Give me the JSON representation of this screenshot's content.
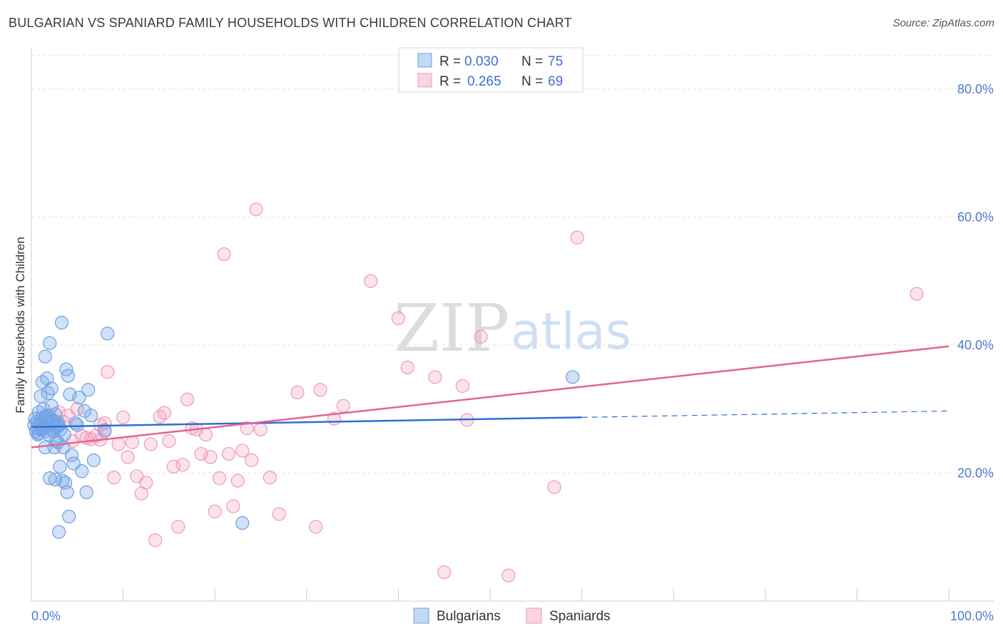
{
  "header": {
    "title": "BULGARIAN VS SPANIARD FAMILY HOUSEHOLDS WITH CHILDREN CORRELATION CHART",
    "source": "Source: ZipAtlas.com"
  },
  "watermark": {
    "zip": "ZIP",
    "atlas": "atlas"
  },
  "colors": {
    "bulgarian_fill": "rgba(120,170,235,0.35)",
    "bulgarian_stroke": "#6f9fe0",
    "bulgarian_line": "#2e6fd0",
    "spaniard_fill": "rgba(245,160,190,0.30)",
    "spaniard_stroke": "#ec9ab6",
    "spaniard_line": "#e0658f",
    "grid": "#e3e3e3",
    "axis_text": "#4a7bd0"
  },
  "chart_data": {
    "type": "scatter",
    "title": "BULGARIAN VS SPANIARD FAMILY HOUSEHOLDS WITH CHILDREN CORRELATION CHART",
    "xlabel": "",
    "ylabel": "Family Households with Children",
    "xlim": [
      0,
      100
    ],
    "ylim": [
      0,
      85
    ],
    "x_tick_labels": [
      "0.0%",
      "100.0%"
    ],
    "y_ticks": [
      20,
      40,
      60,
      80
    ],
    "y_tick_labels": [
      "20.0%",
      "40.0%",
      "60.0%",
      "80.0%"
    ],
    "legend": [
      {
        "series": "Bulgarians",
        "r_label": "R =",
        "r_value": "0.030",
        "n_label": "N =",
        "n_value": "75"
      },
      {
        "series": "Spaniards",
        "r_label": "R =",
        "r_value": "0.265",
        "n_label": "N =",
        "n_value": "69"
      }
    ],
    "series": [
      {
        "name": "Bulgarians",
        "trend": {
          "x": [
            0,
            60
          ],
          "y": [
            27.2,
            28.7
          ],
          "dashed_to": [
            100,
            29.7
          ]
        },
        "points": [
          [
            0.3,
            27.5
          ],
          [
            0.5,
            26.5
          ],
          [
            0.6,
            28.0
          ],
          [
            0.7,
            26.0
          ],
          [
            0.8,
            29.5
          ],
          [
            0.9,
            27.8
          ],
          [
            1.0,
            26.8
          ],
          [
            1.1,
            28.5
          ],
          [
            1.2,
            27.0
          ],
          [
            1.3,
            30.0
          ],
          [
            1.4,
            28.8
          ],
          [
            1.5,
            26.5
          ],
          [
            1.6,
            27.5
          ],
          [
            1.7,
            29.0
          ],
          [
            1.8,
            28.0
          ],
          [
            1.9,
            26.0
          ],
          [
            2.0,
            27.8
          ],
          [
            2.1,
            28.5
          ],
          [
            2.2,
            30.5
          ],
          [
            2.3,
            27.0
          ],
          [
            2.4,
            26.5
          ],
          [
            2.5,
            28.0
          ],
          [
            2.6,
            29.2
          ],
          [
            2.7,
            27.2
          ],
          [
            2.8,
            28.0
          ],
          [
            3.0,
            27.5
          ],
          [
            3.2,
            26.8
          ],
          [
            1.0,
            32.0
          ],
          [
            1.2,
            34.2
          ],
          [
            1.5,
            38.2
          ],
          [
            1.7,
            34.8
          ],
          [
            1.8,
            32.5
          ],
          [
            2.0,
            40.3
          ],
          [
            2.2,
            33.2
          ],
          [
            2.5,
            24.0
          ],
          [
            2.7,
            25.0
          ],
          [
            2.9,
            24.8
          ],
          [
            3.1,
            21.0
          ],
          [
            3.3,
            43.5
          ],
          [
            3.4,
            18.8
          ],
          [
            3.5,
            24.0
          ],
          [
            3.6,
            26.0
          ],
          [
            3.7,
            18.5
          ],
          [
            3.8,
            36.2
          ],
          [
            3.9,
            17.0
          ],
          [
            4.0,
            35.2
          ],
          [
            4.1,
            13.2
          ],
          [
            4.2,
            32.3
          ],
          [
            4.4,
            22.8
          ],
          [
            4.6,
            21.5
          ],
          [
            4.8,
            27.8
          ],
          [
            5.0,
            27.5
          ],
          [
            5.2,
            31.8
          ],
          [
            5.5,
            20.3
          ],
          [
            5.8,
            29.7
          ],
          [
            6.0,
            17.0
          ],
          [
            6.2,
            33.0
          ],
          [
            6.5,
            29.0
          ],
          [
            6.8,
            22.0
          ],
          [
            8.0,
            26.7
          ],
          [
            8.3,
            41.8
          ],
          [
            23.0,
            12.2
          ],
          [
            59.0,
            35.0
          ],
          [
            2.0,
            19.2
          ],
          [
            2.6,
            19.0
          ],
          [
            3.0,
            10.8
          ],
          [
            1.5,
            24.0
          ],
          [
            0.4,
            28.5
          ],
          [
            0.6,
            27.0
          ],
          [
            0.8,
            26.2
          ],
          [
            1.1,
            27.6
          ],
          [
            1.3,
            26.9
          ],
          [
            1.6,
            28.6
          ],
          [
            2.3,
            28.2
          ],
          [
            2.9,
            27.3
          ]
        ]
      },
      {
        "name": "Spaniards",
        "trend": {
          "x": [
            0,
            100
          ],
          "y": [
            24.0,
            39.8
          ]
        },
        "points": [
          [
            1.5,
            28.5
          ],
          [
            2.0,
            29.0
          ],
          [
            2.5,
            27.5
          ],
          [
            3.0,
            29.5
          ],
          [
            3.5,
            28.0
          ],
          [
            4.0,
            29.0
          ],
          [
            4.5,
            25.0
          ],
          [
            5.0,
            30.0
          ],
          [
            5.5,
            25.8
          ],
          [
            6.0,
            25.5
          ],
          [
            6.5,
            25.3
          ],
          [
            7.0,
            25.8
          ],
          [
            7.5,
            27.5
          ],
          [
            8.0,
            26.5
          ],
          [
            7.5,
            25.2
          ],
          [
            8.0,
            27.8
          ],
          [
            9.0,
            19.3
          ],
          [
            9.5,
            24.5
          ],
          [
            10.0,
            28.7
          ],
          [
            10.5,
            22.5
          ],
          [
            11.0,
            24.8
          ],
          [
            11.5,
            19.5
          ],
          [
            12.0,
            16.8
          ],
          [
            12.5,
            18.5
          ],
          [
            13.0,
            24.5
          ],
          [
            13.5,
            9.5
          ],
          [
            14.0,
            28.8
          ],
          [
            14.5,
            29.4
          ],
          [
            15.0,
            25.0
          ],
          [
            15.5,
            21.0
          ],
          [
            16.0,
            11.6
          ],
          [
            16.5,
            21.3
          ],
          [
            17.0,
            31.5
          ],
          [
            17.5,
            27.0
          ],
          [
            18.0,
            26.8
          ],
          [
            18.5,
            23.0
          ],
          [
            19.0,
            26.0
          ],
          [
            19.5,
            22.5
          ],
          [
            20.0,
            14.0
          ],
          [
            20.5,
            19.2
          ],
          [
            21.0,
            54.2
          ],
          [
            21.5,
            23.0
          ],
          [
            22.0,
            14.8
          ],
          [
            22.5,
            18.8
          ],
          [
            23.0,
            23.5
          ],
          [
            23.5,
            27.0
          ],
          [
            24.0,
            22.0
          ],
          [
            24.5,
            61.2
          ],
          [
            25.0,
            26.8
          ],
          [
            26.0,
            19.3
          ],
          [
            27.0,
            13.6
          ],
          [
            29.0,
            32.6
          ],
          [
            31.0,
            11.6
          ],
          [
            31.5,
            33.0
          ],
          [
            33.0,
            28.5
          ],
          [
            34.0,
            30.5
          ],
          [
            37.0,
            50.0
          ],
          [
            40.0,
            44.2
          ],
          [
            41.0,
            36.5
          ],
          [
            44.0,
            35.0
          ],
          [
            45.0,
            4.5
          ],
          [
            47.0,
            33.6
          ],
          [
            47.5,
            28.3
          ],
          [
            49.0,
            41.3
          ],
          [
            52.0,
            4.0
          ],
          [
            57.0,
            17.8
          ],
          [
            59.5,
            56.8
          ],
          [
            96.5,
            48.0
          ],
          [
            8.3,
            35.8
          ]
        ]
      }
    ]
  }
}
